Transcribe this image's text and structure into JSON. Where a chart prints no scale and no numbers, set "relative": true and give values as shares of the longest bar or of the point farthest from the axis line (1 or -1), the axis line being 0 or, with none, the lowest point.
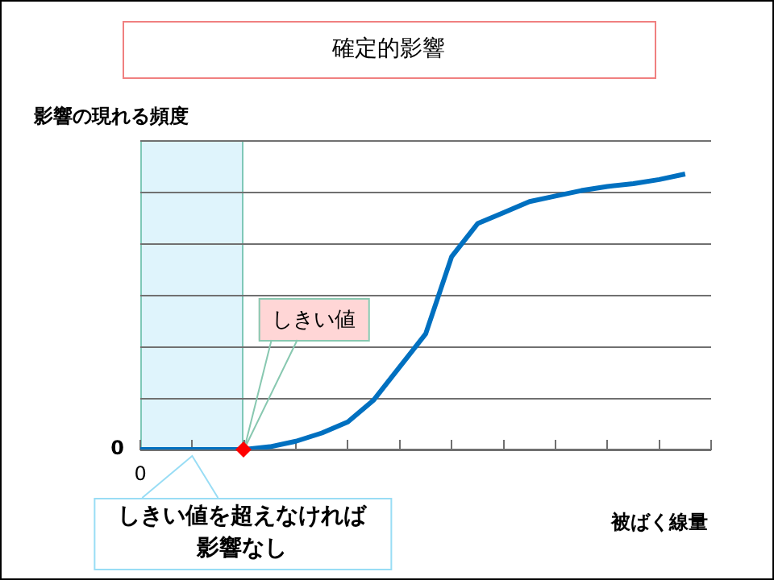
{
  "chart_data": {
    "type": "line",
    "title": "確定的影響",
    "ylabel": "影響の現れる頻度",
    "xlabel": "被ばく線量",
    "relative": true,
    "categories": [
      null,
      null,
      null,
      null,
      null,
      null,
      null,
      null,
      null,
      null,
      null,
      null,
      null,
      null,
      null,
      null,
      null,
      null,
      null,
      null,
      null,
      null,
      null
    ],
    "series": [
      {
        "color": "#0070c0",
        "marker": "none",
        "values": [
          0,
          0,
          0,
          0,
          0,
          0.01,
          0.03,
          0.06,
          0.1,
          0.18,
          0.3,
          0.42,
          0.7,
          0.82,
          0.86,
          0.9,
          0.92,
          0.94,
          0.955,
          0.965,
          0.98,
          1,
          null
        ]
      }
    ],
    "annotations": [
      "0",
      "0",
      "しきい値",
      "しきい値を超えなければ影響なし"
    ],
    "grid": "y",
    "legend": false,
    "tick_labels": false
  }
}
